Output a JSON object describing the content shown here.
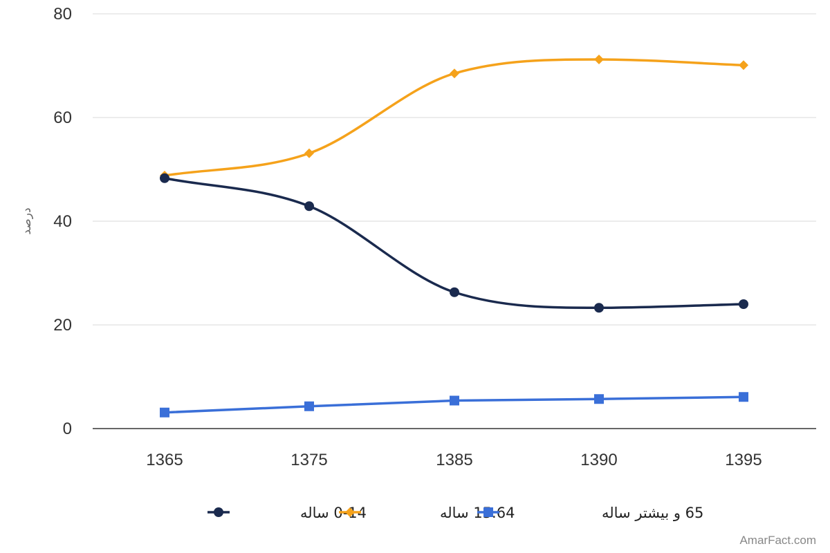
{
  "chart_data": {
    "type": "line",
    "title": "",
    "xlabel": "",
    "ylabel": "درصد",
    "categories": [
      "1365",
      "1375",
      "1385",
      "1390",
      "1395"
    ],
    "ylim": [
      0,
      80
    ],
    "yticks": [
      0,
      20,
      40,
      60,
      80
    ],
    "grid": true,
    "legend_position": "bottom",
    "series": [
      {
        "name": "0-14 ساله",
        "values": [
          48.3,
          42.9,
          26.3,
          23.3,
          24.0
        ],
        "color": "#1a2a4e",
        "marker": "circle"
      },
      {
        "name": "15.64 ساله",
        "values": [
          48.8,
          53.1,
          68.5,
          71.2,
          70.1
        ],
        "color": "#f5a21b",
        "marker": "diamond"
      },
      {
        "name": "65 و بیشتر ساله",
        "values": [
          3.1,
          4.3,
          5.4,
          5.7,
          6.1
        ],
        "color": "#3a6fd8",
        "marker": "square"
      }
    ]
  },
  "watermark": "AmarFact.com"
}
